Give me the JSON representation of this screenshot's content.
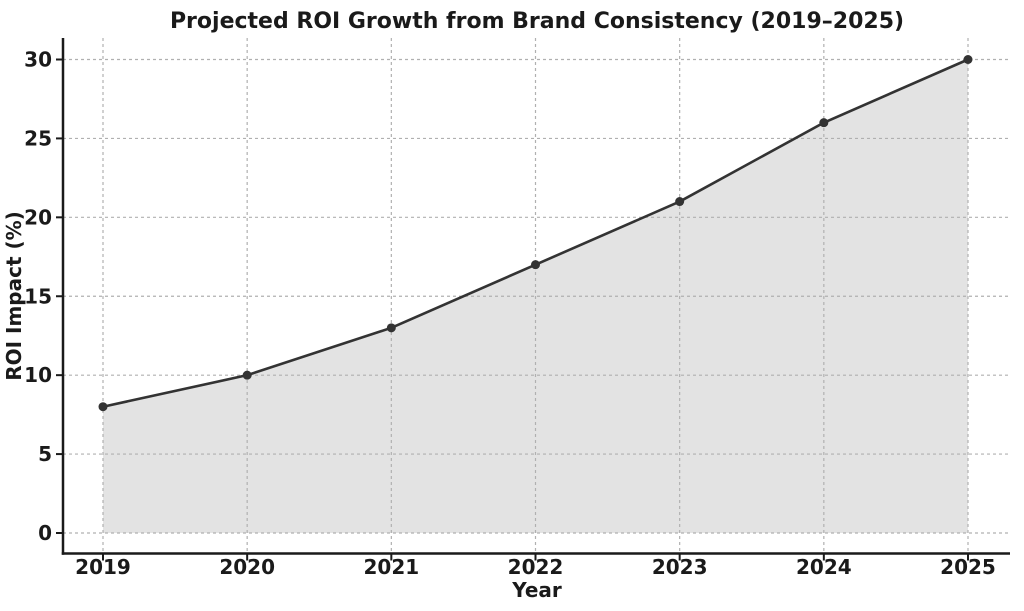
{
  "chart_data": {
    "type": "line",
    "title": "Projected ROI Growth from Brand Consistency (2019–2025)",
    "xlabel": "Year",
    "ylabel": "ROI Impact (%)",
    "categories": [
      "2019",
      "2020",
      "2021",
      "2022",
      "2023",
      "2024",
      "2025"
    ],
    "series": [
      {
        "name": "ROI Impact",
        "values": [
          8,
          10,
          13,
          17,
          21,
          26,
          30
        ]
      }
    ],
    "yticks": [
      0,
      5,
      10,
      15,
      20,
      25,
      30
    ],
    "ylim": [
      0,
      30
    ],
    "grid": true,
    "grid_style": "dashed",
    "legend": "none",
    "area_fill": true,
    "marker": "circle",
    "colors": {
      "line": "#333333",
      "marker": "#333333",
      "fill": "#e3e3e3",
      "grid": "#b0b0b0",
      "axis": "#1a1a1a",
      "text": "#1a1a1a",
      "background": "#ffffff"
    }
  }
}
